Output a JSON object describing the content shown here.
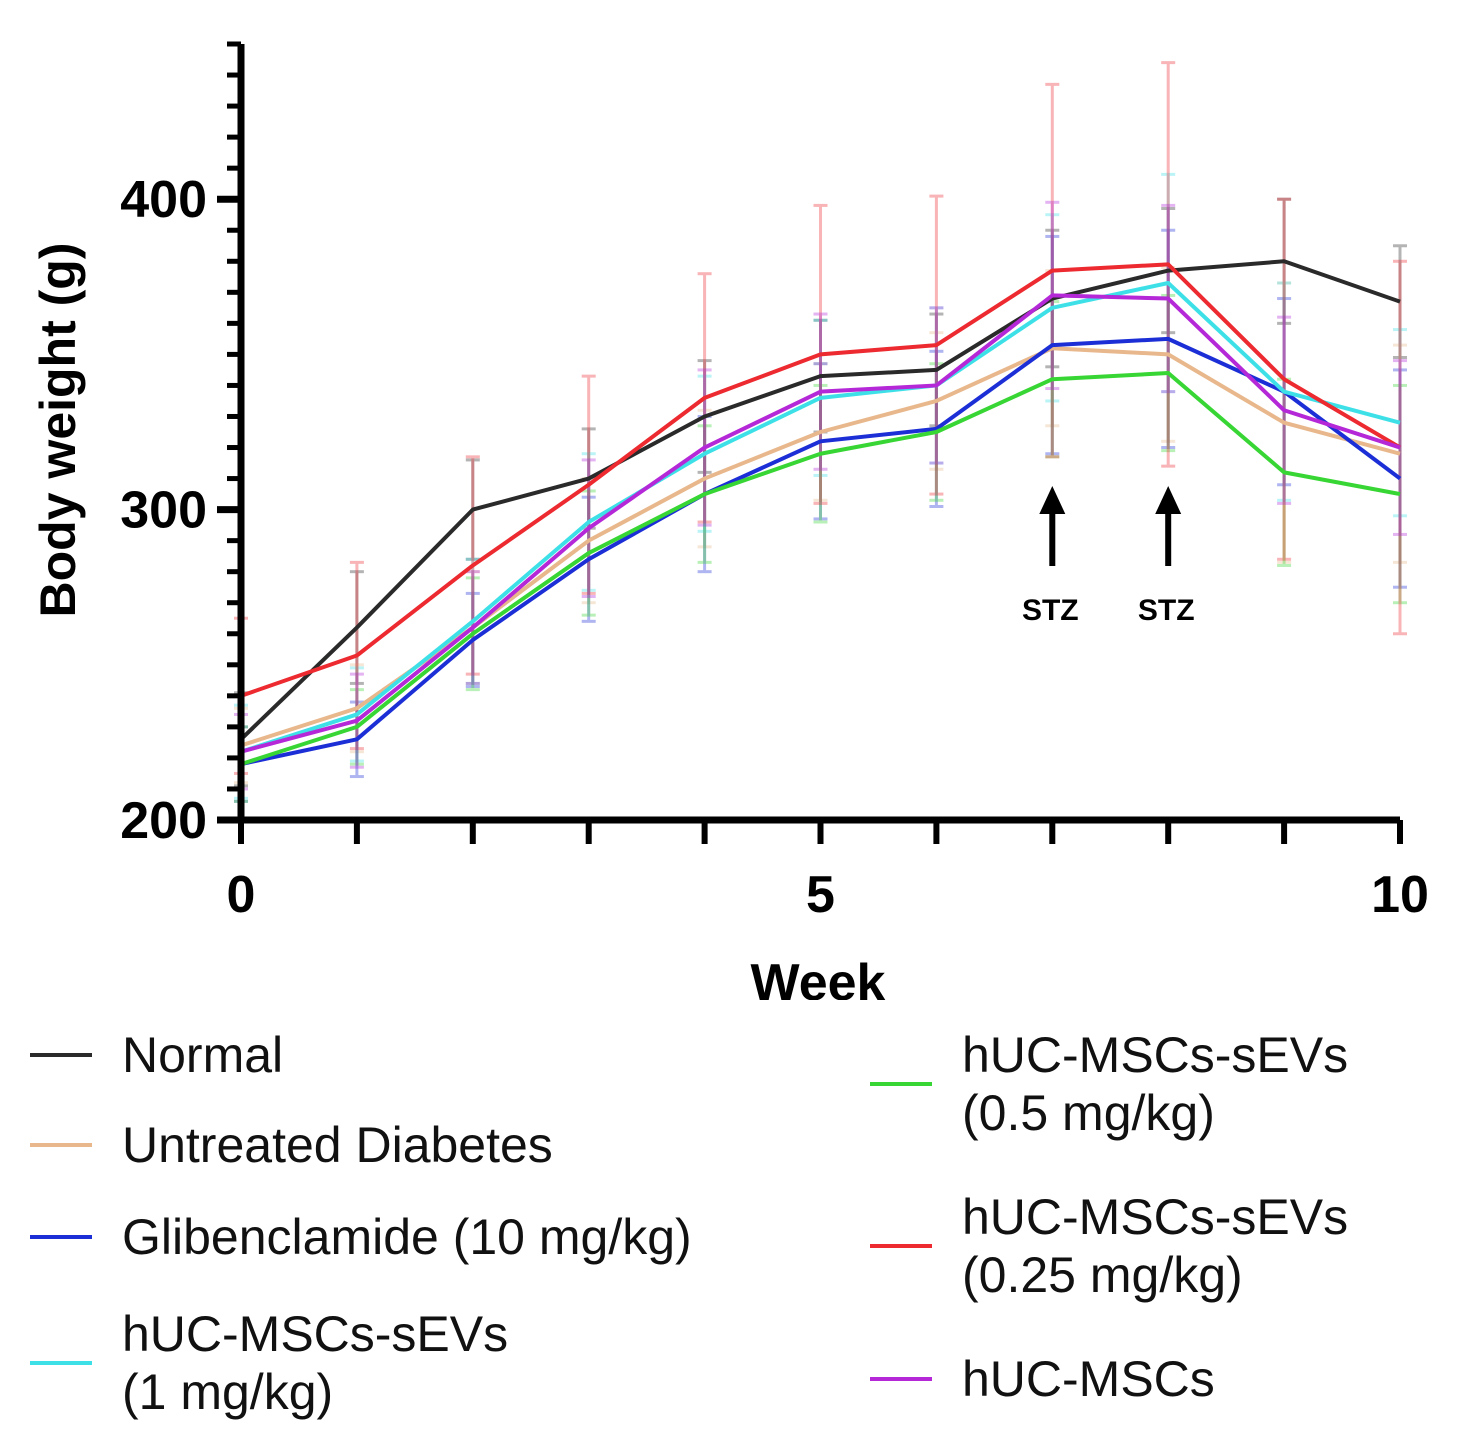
{
  "chart_data": {
    "type": "line",
    "title": "",
    "xlabel": "Week",
    "ylabel": "Body weight (g)",
    "xlim": [
      0,
      10
    ],
    "ylim": [
      200,
      450
    ],
    "x_ticks": [
      0,
      5,
      10
    ],
    "y_ticks": [
      200,
      300,
      400
    ],
    "x": [
      0,
      1,
      2,
      3,
      4,
      5,
      6,
      7,
      8,
      9,
      10
    ],
    "series": [
      {
        "name": "Normal",
        "color": "#2a2a2a",
        "values": [
          226,
          262,
          300,
          310,
          330,
          343,
          345,
          368,
          377,
          380,
          367
        ],
        "errors": [
          15,
          18,
          16,
          16,
          18,
          18,
          18,
          22,
          20,
          20,
          18
        ]
      },
      {
        "name": "Untreated Diabetes",
        "color": "#e8b88c",
        "values": [
          224,
          236,
          262,
          290,
          310,
          325,
          335,
          352,
          350,
          328,
          318
        ],
        "errors": [
          12,
          14,
          18,
          20,
          22,
          22,
          22,
          25,
          28,
          45,
          35
        ]
      },
      {
        "name": "Glibenclamide (10 mg/kg)",
        "color": "#1c2fd6",
        "values": [
          218,
          226,
          258,
          284,
          305,
          322,
          326,
          353,
          355,
          338,
          310
        ],
        "errors": [
          12,
          12,
          15,
          20,
          25,
          25,
          25,
          35,
          35,
          30,
          35
        ]
      },
      {
        "name": "hUC-MSCs-sEVs\n(1 mg/kg)",
        "color": "#3ee0e8",
        "values": [
          222,
          234,
          264,
          296,
          318,
          336,
          340,
          365,
          373,
          338,
          328
        ],
        "errors": [
          15,
          15,
          20,
          22,
          25,
          25,
          25,
          30,
          35,
          35,
          30
        ]
      },
      {
        "name": "hUC-MSCs-sEVs\n(0.5 mg/kg)",
        "color": "#38d634",
        "values": [
          218,
          230,
          260,
          286,
          305,
          318,
          325,
          342,
          344,
          312,
          305
        ],
        "errors": [
          12,
          12,
          18,
          20,
          22,
          22,
          22,
          25,
          25,
          30,
          35
        ]
      },
      {
        "name": "hUC-MSCs-sEVs\n(0.25 mg/kg)",
        "color": "#ec2a30",
        "values": [
          240,
          253,
          282,
          308,
          336,
          350,
          353,
          377,
          379,
          342,
          320
        ],
        "errors": [
          25,
          30,
          35,
          35,
          40,
          48,
          48,
          60,
          65,
          58,
          60
        ]
      },
      {
        "name": "hUC-MSCs",
        "color": "#b428d8",
        "values": [
          222,
          232,
          262,
          294,
          320,
          338,
          340,
          369,
          368,
          332,
          320
        ],
        "errors": [
          12,
          15,
          18,
          22,
          25,
          25,
          25,
          30,
          30,
          30,
          28
        ]
      }
    ],
    "annotations": [
      {
        "x": 7,
        "text": "STZ"
      },
      {
        "x": 8,
        "text": "STZ"
      }
    ],
    "legend_position": "bottom"
  }
}
